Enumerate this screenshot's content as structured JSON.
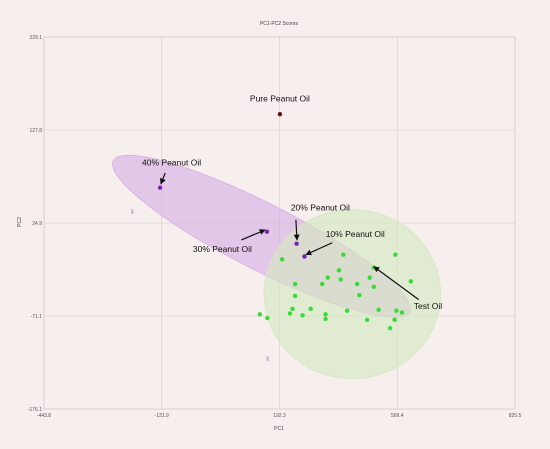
{
  "chart_data": {
    "type": "scatter",
    "title": "PC1-PC2 Scores",
    "xlabel": "PC1",
    "ylabel": "PC2",
    "xlim": [
      -443.8,
      825.5
    ],
    "ylim": [
      -176.1,
      229.1
    ],
    "xticks": [
      "-443.8",
      "-131.9",
      "192.3",
      "509.4",
      "825.5"
    ],
    "yticks": [
      "229.1",
      "127.8",
      "24.9",
      "-71.1",
      "-176.1"
    ],
    "grid": true,
    "colors": {
      "background": "#f7eeee",
      "grid": "#d6cccc",
      "pure_point": "#6b0f1a",
      "adulterated_point": "#7a22b8",
      "test_point": "#33dd33",
      "purple_ellipse": "#d6aee3",
      "green_ellipse": "#d3e8bf"
    },
    "series": [
      {
        "name": "Pure Peanut Oil",
        "points": [
          [
            192,
            145
          ]
        ]
      },
      {
        "name": "40% Peanut Oil",
        "points": [
          [
            -131,
            65
          ]
        ]
      },
      {
        "name": "30% Peanut Oil",
        "points": [
          [
            157,
            17
          ]
        ]
      },
      {
        "name": "20% Peanut Oil",
        "points": [
          [
            237,
            4
          ]
        ]
      },
      {
        "name": "10% Peanut Oil",
        "points": [
          [
            258,
            -10
          ]
        ]
      },
      {
        "name": "Test Oil",
        "points": [
          [
            198,
            -13
          ],
          [
            363,
            -8
          ],
          [
            503,
            -8
          ],
          [
            445,
            -22
          ],
          [
            351,
            -25
          ],
          [
            321,
            -33
          ],
          [
            356,
            -35
          ],
          [
            434,
            -33
          ],
          [
            545,
            -37
          ],
          [
            233,
            -40
          ],
          [
            306,
            -40
          ],
          [
            400,
            -40
          ],
          [
            445,
            -43
          ],
          [
            233,
            -53
          ],
          [
            406,
            -52
          ],
          [
            226,
            -67
          ],
          [
            275,
            -67
          ],
          [
            373,
            -69
          ],
          [
            458,
            -68
          ],
          [
            506,
            -69
          ],
          [
            138,
            -73
          ],
          [
            219,
            -72
          ],
          [
            253,
            -74
          ],
          [
            521,
            -71
          ],
          [
            315,
            -73
          ],
          [
            158,
            -77
          ],
          [
            315,
            -78
          ],
          [
            427,
            -79
          ],
          [
            501,
            -79
          ],
          [
            489,
            -88
          ]
        ]
      }
    ],
    "extra_marks": [
      {
        "label": "§",
        "x": -206,
        "y": 37
      },
      {
        "label": "§",
        "x": 159,
        "y": -123
      }
    ],
    "annotations": [
      {
        "text": "Pure Peanut Oil",
        "x": 192,
        "y": 159
      },
      {
        "text": "40% Peanut Oil",
        "x": -100,
        "y": 89
      },
      {
        "text": "30% Peanut Oil",
        "x": 37,
        "y": -5
      },
      {
        "text": "20% Peanut Oil",
        "x": 301,
        "y": 40
      },
      {
        "text": "10% Peanut Oil",
        "x": 395,
        "y": 11
      },
      {
        "text": "Test Oil",
        "x": 591,
        "y": -67
      }
    ],
    "arrows": [
      {
        "from": [
          -117,
          81
        ],
        "to": [
          -129,
          69
        ]
      },
      {
        "from": [
          88,
          8
        ],
        "to": [
          152,
          19
        ]
      },
      {
        "from": [
          235,
          30
        ],
        "to": [
          238,
          8
        ]
      },
      {
        "from": [
          333,
          5
        ],
        "to": [
          262,
          -8
        ]
      },
      {
        "from": [
          566,
          -57
        ],
        "to": [
          445,
          -21
        ]
      }
    ],
    "ellipses": [
      {
        "name": "purple",
        "cx": 142,
        "cy": 12,
        "rx": 448,
        "ry": 36,
        "angle_deg": 27
      },
      {
        "name": "green",
        "cx": 387,
        "cy": -51,
        "rx": 238,
        "ry": 92,
        "angle_deg": 0
      }
    ]
  }
}
